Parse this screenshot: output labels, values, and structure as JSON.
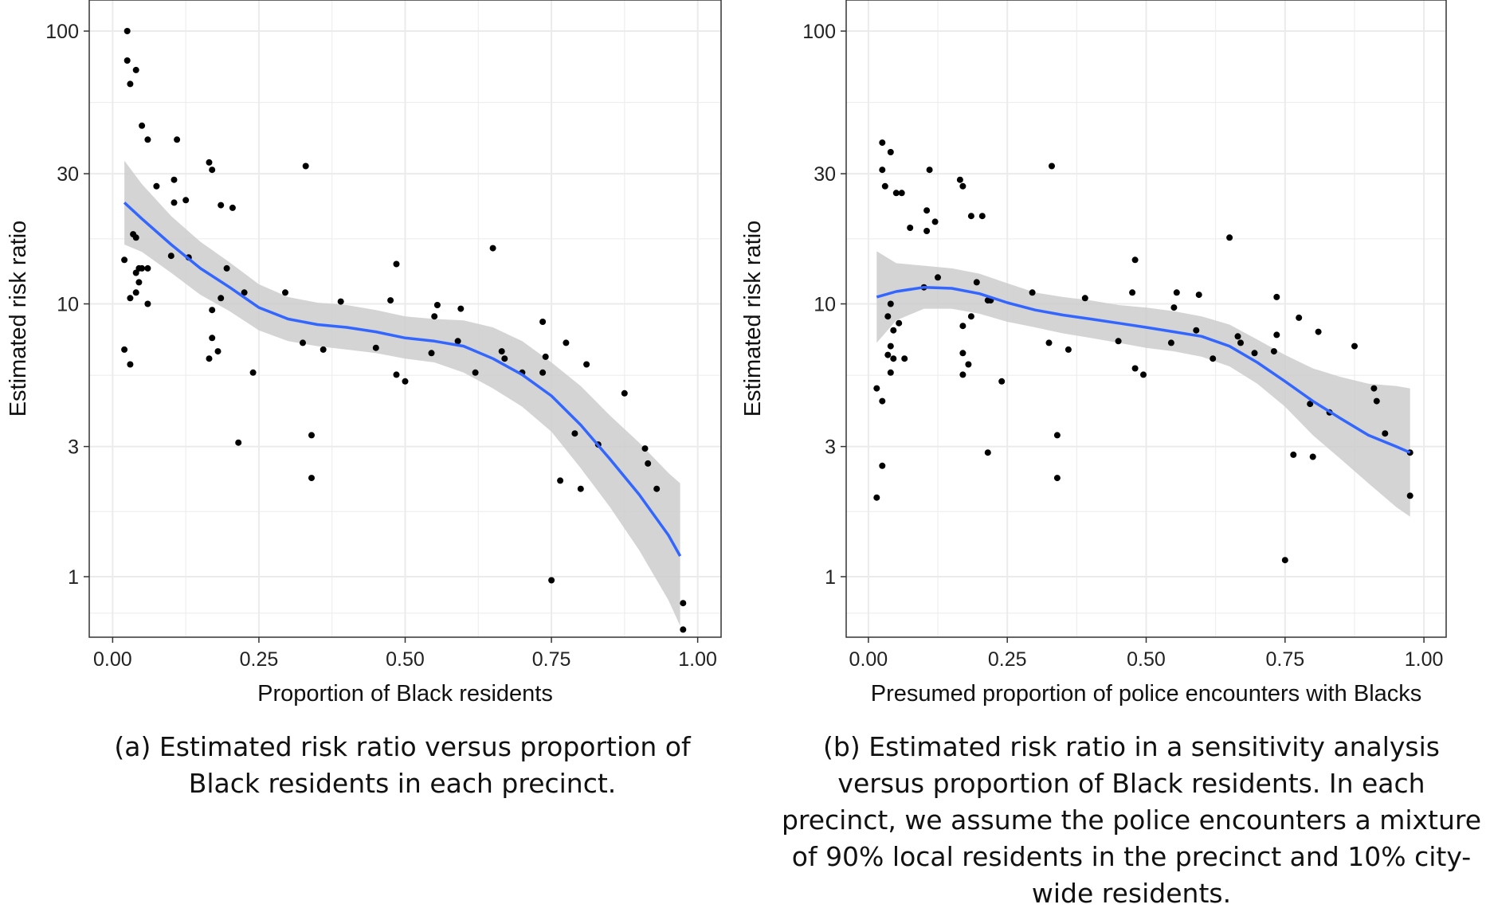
{
  "chart_data": [
    {
      "type": "scatter",
      "panel": "a",
      "xlabel": "Proportion of Black residents",
      "ylabel": "Estimated risk ratio",
      "y_scale": "log10",
      "xlim": [
        -0.04,
        1.04
      ],
      "ylim": [
        0.6,
        130
      ],
      "x_ticks": [
        0,
        0.25,
        0.5,
        0.75,
        1.0
      ],
      "x_tick_labels": [
        "0.00",
        "0.25",
        "0.50",
        "0.75",
        "1.00"
      ],
      "y_ticks": [
        1,
        3,
        10,
        30,
        100
      ],
      "y_tick_labels": [
        "1",
        "3",
        "10",
        "30",
        "100"
      ],
      "grid": true,
      "points": [
        [
          0.025,
          100
        ],
        [
          0.025,
          78
        ],
        [
          0.03,
          64
        ],
        [
          0.04,
          72
        ],
        [
          0.05,
          45
        ],
        [
          0.06,
          40
        ],
        [
          0.075,
          27
        ],
        [
          0.105,
          28.5
        ],
        [
          0.11,
          40
        ],
        [
          0.165,
          33
        ],
        [
          0.17,
          31
        ],
        [
          0.125,
          24
        ],
        [
          0.105,
          23.5
        ],
        [
          0.185,
          23
        ],
        [
          0.205,
          22.5
        ],
        [
          0.035,
          18
        ],
        [
          0.04,
          17.5
        ],
        [
          0.02,
          14.5
        ],
        [
          0.045,
          13.5
        ],
        [
          0.05,
          13.5
        ],
        [
          0.06,
          13.5
        ],
        [
          0.04,
          13
        ],
        [
          0.045,
          12
        ],
        [
          0.04,
          11
        ],
        [
          0.03,
          10.5
        ],
        [
          0.06,
          10
        ],
        [
          0.1,
          15
        ],
        [
          0.13,
          14.8
        ],
        [
          0.195,
          13.5
        ],
        [
          0.225,
          11
        ],
        [
          0.185,
          10.5
        ],
        [
          0.17,
          9.5
        ],
        [
          0.02,
          6.8
        ],
        [
          0.03,
          6
        ],
        [
          0.17,
          7.5
        ],
        [
          0.18,
          6.7
        ],
        [
          0.165,
          6.3
        ],
        [
          0.24,
          5.6
        ],
        [
          0.215,
          3.1
        ],
        [
          0.295,
          11
        ],
        [
          0.33,
          32
        ],
        [
          0.325,
          7.2
        ],
        [
          0.36,
          6.8
        ],
        [
          0.39,
          10.2
        ],
        [
          0.34,
          3.3
        ],
        [
          0.34,
          2.3
        ],
        [
          0.45,
          6.9
        ],
        [
          0.475,
          10.3
        ],
        [
          0.485,
          14
        ],
        [
          0.485,
          5.5
        ],
        [
          0.5,
          5.2
        ],
        [
          0.545,
          6.6
        ],
        [
          0.55,
          9
        ],
        [
          0.555,
          9.9
        ],
        [
          0.59,
          7.3
        ],
        [
          0.595,
          9.6
        ],
        [
          0.62,
          5.6
        ],
        [
          0.65,
          16
        ],
        [
          0.665,
          6.7
        ],
        [
          0.67,
          6.3
        ],
        [
          0.7,
          5.6
        ],
        [
          0.735,
          5.6
        ],
        [
          0.735,
          8.6
        ],
        [
          0.74,
          6.4
        ],
        [
          0.75,
          0.97
        ],
        [
          0.765,
          2.25
        ],
        [
          0.775,
          7.2
        ],
        [
          0.79,
          3.35
        ],
        [
          0.8,
          2.1
        ],
        [
          0.81,
          6
        ],
        [
          0.83,
          3.05
        ],
        [
          0.875,
          4.7
        ],
        [
          0.91,
          2.95
        ],
        [
          0.915,
          2.6
        ],
        [
          0.93,
          2.1
        ],
        [
          0.975,
          0.8
        ],
        [
          0.975,
          0.64
        ]
      ],
      "smooth": {
        "x": [
          0.02,
          0.05,
          0.1,
          0.15,
          0.2,
          0.25,
          0.3,
          0.35,
          0.4,
          0.45,
          0.5,
          0.55,
          0.6,
          0.65,
          0.7,
          0.75,
          0.8,
          0.85,
          0.9,
          0.95,
          0.97
        ],
        "y": [
          23.5,
          20.5,
          16.5,
          13.5,
          11.5,
          9.7,
          8.8,
          8.4,
          8.2,
          7.9,
          7.5,
          7.3,
          7.0,
          6.3,
          5.5,
          4.6,
          3.6,
          2.7,
          2.0,
          1.42,
          1.19
        ],
        "lower": [
          16.5,
          15.5,
          13.0,
          10.8,
          9.4,
          8.0,
          7.3,
          7.0,
          6.8,
          6.6,
          6.3,
          6.1,
          5.6,
          4.9,
          4.2,
          3.4,
          2.5,
          1.8,
          1.25,
          0.82,
          0.66
        ],
        "upper": [
          33.5,
          27.5,
          21.0,
          16.9,
          14.2,
          11.8,
          10.6,
          10.1,
          9.9,
          9.5,
          9.0,
          8.8,
          8.7,
          8.2,
          7.3,
          6.1,
          5.0,
          3.9,
          3.1,
          2.4,
          2.2
        ]
      },
      "colors": {
        "points": "#000000",
        "line": "#3366ff",
        "band": "#cccccc",
        "grid": "#ebebeb",
        "border": "#333333"
      }
    },
    {
      "type": "scatter",
      "panel": "b",
      "xlabel": "Presumed proportion of police encounters with Blacks",
      "ylabel": "Estimated risk ratio",
      "y_scale": "log10",
      "xlim": [
        -0.04,
        1.04
      ],
      "ylim": [
        0.6,
        130
      ],
      "x_ticks": [
        0,
        0.25,
        0.5,
        0.75,
        1.0
      ],
      "x_tick_labels": [
        "0.00",
        "0.25",
        "0.50",
        "0.75",
        "1.00"
      ],
      "y_ticks": [
        1,
        3,
        10,
        30,
        100
      ],
      "y_tick_labels": [
        "1",
        "3",
        "10",
        "30",
        "100"
      ],
      "grid": true,
      "points": [
        [
          0.025,
          39
        ],
        [
          0.025,
          31
        ],
        [
          0.03,
          27
        ],
        [
          0.04,
          36
        ],
        [
          0.05,
          25.5
        ],
        [
          0.06,
          25.5
        ],
        [
          0.075,
          19
        ],
        [
          0.105,
          22
        ],
        [
          0.11,
          31
        ],
        [
          0.105,
          18.5
        ],
        [
          0.12,
          20
        ],
        [
          0.165,
          28.5
        ],
        [
          0.17,
          27
        ],
        [
          0.185,
          21
        ],
        [
          0.205,
          21
        ],
        [
          0.035,
          9
        ],
        [
          0.04,
          10
        ],
        [
          0.045,
          8
        ],
        [
          0.055,
          8.5
        ],
        [
          0.04,
          7
        ],
        [
          0.035,
          6.5
        ],
        [
          0.045,
          6.3
        ],
        [
          0.065,
          6.3
        ],
        [
          0.04,
          5.6
        ],
        [
          0.1,
          11.5
        ],
        [
          0.125,
          12.5
        ],
        [
          0.195,
          12
        ],
        [
          0.215,
          10.3
        ],
        [
          0.22,
          10.3
        ],
        [
          0.17,
          8.3
        ],
        [
          0.185,
          9
        ],
        [
          0.17,
          6.6
        ],
        [
          0.18,
          6
        ],
        [
          0.17,
          5.5
        ],
        [
          0.015,
          4.9
        ],
        [
          0.025,
          4.4
        ],
        [
          0.025,
          2.55
        ],
        [
          0.015,
          1.95
        ],
        [
          0.24,
          5.2
        ],
        [
          0.215,
          2.85
        ],
        [
          0.295,
          11
        ],
        [
          0.33,
          32
        ],
        [
          0.325,
          7.2
        ],
        [
          0.36,
          6.8
        ],
        [
          0.39,
          10.5
        ],
        [
          0.34,
          3.3
        ],
        [
          0.34,
          2.3
        ],
        [
          0.45,
          7.3
        ],
        [
          0.475,
          11
        ],
        [
          0.48,
          14.5
        ],
        [
          0.48,
          5.8
        ],
        [
          0.495,
          5.5
        ],
        [
          0.545,
          7.2
        ],
        [
          0.55,
          9.7
        ],
        [
          0.555,
          11
        ],
        [
          0.59,
          8
        ],
        [
          0.595,
          10.8
        ],
        [
          0.62,
          6.3
        ],
        [
          0.65,
          17.5
        ],
        [
          0.665,
          7.6
        ],
        [
          0.67,
          7.2
        ],
        [
          0.695,
          6.6
        ],
        [
          0.73,
          6.7
        ],
        [
          0.735,
          10.6
        ],
        [
          0.735,
          7.7
        ],
        [
          0.75,
          1.15
        ],
        [
          0.765,
          2.8
        ],
        [
          0.775,
          8.9
        ],
        [
          0.795,
          4.3
        ],
        [
          0.8,
          2.75
        ],
        [
          0.81,
          7.9
        ],
        [
          0.83,
          4
        ],
        [
          0.875,
          7
        ],
        [
          0.91,
          4.9
        ],
        [
          0.915,
          4.4
        ],
        [
          0.93,
          3.35
        ],
        [
          0.975,
          2.85
        ],
        [
          0.975,
          1.98
        ]
      ],
      "smooth": {
        "x": [
          0.015,
          0.05,
          0.1,
          0.15,
          0.2,
          0.25,
          0.3,
          0.35,
          0.4,
          0.45,
          0.5,
          0.55,
          0.6,
          0.65,
          0.7,
          0.75,
          0.8,
          0.85,
          0.9,
          0.95,
          0.975
        ],
        "y": [
          10.6,
          11.1,
          11.5,
          11.4,
          10.9,
          10.1,
          9.5,
          9.1,
          8.8,
          8.5,
          8.2,
          7.9,
          7.6,
          7.0,
          6.1,
          5.2,
          4.4,
          3.8,
          3.3,
          3.0,
          2.85
        ],
        "lower": [
          7.2,
          8.7,
          9.6,
          9.6,
          9.2,
          8.6,
          8.2,
          7.8,
          7.5,
          7.2,
          6.9,
          6.7,
          6.4,
          5.9,
          5.1,
          4.2,
          3.3,
          2.7,
          2.2,
          1.8,
          1.66
        ],
        "upper": [
          15.6,
          14.1,
          13.8,
          13.5,
          12.9,
          11.9,
          11.0,
          10.6,
          10.3,
          9.9,
          9.7,
          9.4,
          9.0,
          8.4,
          7.4,
          6.5,
          5.8,
          5.4,
          5.1,
          5.0,
          4.9
        ]
      },
      "colors": {
        "points": "#000000",
        "line": "#3366ff",
        "band": "#cccccc",
        "grid": "#ebebeb",
        "border": "#333333"
      }
    }
  ],
  "captions": {
    "a": "(a) Estimated risk ratio versus proportion of Black residents in each precinct.",
    "b": "(b) Estimated risk ratio in a sensitivity analysis versus proportion of Black residents. In each precinct, we assume the police encounters a mixture of 90% local residents in the precinct and 10% city-wide residents."
  }
}
